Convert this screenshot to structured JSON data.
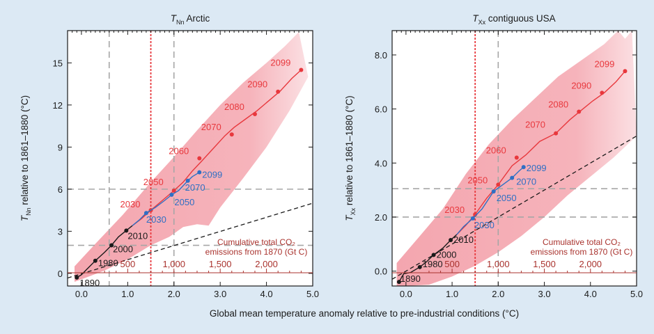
{
  "colors": {
    "background": "#dce9f4",
    "plot_bg": "#ffffff",
    "historical": "#1a1a1a",
    "rcp85": "#e8383d",
    "rcp26": "#2f6fc4",
    "envelope": "#f4a6af",
    "co2_axis": "#a9322d",
    "dashed_grey": "#a6a6a6"
  },
  "shared": {
    "xlabel": "Global mean temperature anomaly relative to pre-industrial conditions (°C)",
    "co2_label": [
      "Cumulative total CO₂",
      "emissions from 1870 (Gt C)"
    ]
  },
  "chart_data": [
    {
      "type": "line",
      "title_main": "T",
      "title_sub": "Nn",
      "title_rest": " Arctic",
      "ylabel_main": "T",
      "ylabel_sub": "Nn",
      "ylabel_rest": " relative to 1861–1880 (°C)",
      "xlim": [
        -0.3,
        5.0
      ],
      "ylim": [
        -0.9,
        17.3
      ],
      "xticks": [
        0,
        1,
        2,
        3,
        4,
        5
      ],
      "xtick_labels": [
        "0.0",
        "1.0",
        "2.0",
        "3.0",
        "4.0",
        "5.0"
      ],
      "yticks": [
        0,
        3,
        6,
        9,
        12,
        15
      ],
      "ytick_labels": [
        "0",
        "3",
        "6",
        "9",
        "12",
        "15"
      ],
      "co2_ticks": [
        {
          "x": 1.0,
          "label": "500"
        },
        {
          "x": 2.0,
          "label": "1,000"
        },
        {
          "x": 3.0,
          "label": "1,500"
        },
        {
          "x": 4.0,
          "label": "2,000"
        }
      ],
      "ref_vlines_grey": [
        0.6,
        2.0
      ],
      "ref_vline_red": 1.5,
      "ref_hlines_grey": [
        2.0,
        6.0
      ],
      "linear_ref": [
        [
          -0.3,
          -0.33
        ],
        [
          5.0,
          5.0
        ]
      ],
      "envelope_upper": [
        [
          -0.15,
          0.5
        ],
        [
          0.3,
          2.1
        ],
        [
          0.9,
          4.2
        ],
        [
          1.5,
          6.5
        ],
        [
          2.0,
          8.3
        ],
        [
          2.5,
          10.2
        ],
        [
          3.0,
          12.0
        ],
        [
          3.5,
          13.6
        ],
        [
          4.0,
          15.0
        ],
        [
          4.4,
          16.2
        ],
        [
          4.7,
          17.2
        ]
      ],
      "envelope_lower": [
        [
          4.9,
          14.0
        ],
        [
          4.5,
          11.6
        ],
        [
          4.0,
          9.0
        ],
        [
          3.5,
          6.8
        ],
        [
          3.0,
          4.7
        ],
        [
          2.75,
          3.4
        ],
        [
          2.5,
          3.5
        ],
        [
          2.2,
          3.3
        ],
        [
          1.9,
          2.6
        ],
        [
          1.5,
          2.0
        ],
        [
          1.0,
          1.0
        ],
        [
          0.5,
          0.2
        ],
        [
          0.1,
          -0.3
        ],
        [
          -0.15,
          -0.6
        ]
      ],
      "series": [
        {
          "key": "historical",
          "points": [
            [
              -0.1,
              -0.3
            ],
            [
              0.0,
              -0.1
            ],
            [
              0.12,
              0.3
            ],
            [
              0.3,
              0.9
            ],
            [
              0.5,
              1.5
            ],
            [
              0.65,
              2.0
            ],
            [
              0.8,
              2.6
            ],
            [
              0.97,
              3.05
            ],
            [
              1.1,
              3.4
            ]
          ],
          "labeled": [
            {
              "x": -0.1,
              "y": -0.3,
              "label": "1890",
              "dx": 4,
              "dy": 12
            },
            {
              "x": 0.3,
              "y": 0.9,
              "label": "1980",
              "dx": 4,
              "dy": 8
            },
            {
              "x": 0.65,
              "y": 2.0,
              "label": "2000",
              "dx": 2,
              "dy": 10
            },
            {
              "x": 0.97,
              "y": 3.05,
              "label": "2010",
              "dx": 2,
              "dy": 12
            }
          ]
        },
        {
          "key": "rcp85",
          "points": [
            [
              1.1,
              3.4
            ],
            [
              1.3,
              3.9
            ],
            [
              1.5,
              4.5
            ],
            [
              1.75,
              5.2
            ],
            [
              2.0,
              5.9
            ],
            [
              2.2,
              6.5
            ],
            [
              2.4,
              7.3
            ],
            [
              2.6,
              8.0
            ],
            [
              2.85,
              8.9
            ],
            [
              3.1,
              9.8
            ],
            [
              3.3,
              10.4
            ],
            [
              3.55,
              11.0
            ],
            [
              3.8,
              11.6
            ],
            [
              4.05,
              12.3
            ],
            [
              4.3,
              13.0
            ],
            [
              4.55,
              13.9
            ],
            [
              4.75,
              14.5
            ]
          ],
          "labeled": [
            {
              "x": 1.5,
              "y": 4.5,
              "label": "2030",
              "dx": -44,
              "dy": -4
            },
            {
              "x": 2.0,
              "y": 5.9,
              "label": "2050",
              "dx": -44,
              "dy": -8
            },
            {
              "x": 2.55,
              "y": 8.2,
              "label": "2060",
              "dx": -44,
              "dy": -6
            },
            {
              "x": 3.25,
              "y": 9.9,
              "label": "2070",
              "dx": -44,
              "dy": -6
            },
            {
              "x": 3.75,
              "y": 11.35,
              "label": "2080",
              "dx": -44,
              "dy": -6
            },
            {
              "x": 4.25,
              "y": 12.95,
              "label": "2090",
              "dx": -44,
              "dy": -6
            },
            {
              "x": 4.75,
              "y": 14.5,
              "label": "2099",
              "dx": -44,
              "dy": -6
            }
          ]
        },
        {
          "key": "rcp26",
          "points": [
            [
              1.1,
              3.4
            ],
            [
              1.25,
              3.8
            ],
            [
              1.4,
              4.3
            ],
            [
              1.6,
              4.7
            ],
            [
              1.8,
              5.2
            ],
            [
              1.95,
              5.6
            ],
            [
              2.1,
              5.9
            ],
            [
              2.3,
              6.6
            ],
            [
              2.4,
              6.9
            ],
            [
              2.55,
              7.2
            ]
          ],
          "labeled": [
            {
              "x": 1.4,
              "y": 4.3,
              "label": "2030",
              "dx": 0,
              "dy": 14
            },
            {
              "x": 1.95,
              "y": 5.6,
              "label": "2050",
              "dx": 4,
              "dy": 15
            },
            {
              "x": 2.3,
              "y": 6.6,
              "label": "2070",
              "dx": -4,
              "dy": 14
            },
            {
              "x": 2.55,
              "y": 7.2,
              "label": "2099",
              "dx": 4,
              "dy": 8
            }
          ]
        }
      ]
    },
    {
      "type": "line",
      "title_main": "T",
      "title_sub": "Xx",
      "title_rest": " contiguous USA",
      "ylabel_main": "T",
      "ylabel_sub": "Xx",
      "ylabel_rest": " relative to 1861–1880 (°C)",
      "xlim": [
        -0.3,
        5.0
      ],
      "ylim": [
        -0.55,
        8.9
      ],
      "xticks": [
        0,
        1,
        2,
        3,
        4,
        5
      ],
      "xtick_labels": [
        "0.0",
        "1.0",
        "2.0",
        "3.0",
        "4.0",
        "5.0"
      ],
      "yticks": [
        0,
        2,
        4,
        6,
        8
      ],
      "ytick_labels": [
        "0.0",
        "2.0",
        "4.0",
        "6.0",
        "8.0"
      ],
      "co2_ticks": [
        {
          "x": 1.0,
          "label": "500"
        },
        {
          "x": 2.0,
          "label": "1,000"
        },
        {
          "x": 3.0,
          "label": "1,500"
        },
        {
          "x": 4.0,
          "label": "2,000"
        }
      ],
      "ref_vlines_grey": [
        2.0
      ],
      "ref_vline_red": 1.5,
      "ref_hlines_grey": [
        2.0,
        3.05
      ],
      "linear_ref": [
        [
          -0.3,
          -0.3
        ],
        [
          5.0,
          5.0
        ]
      ],
      "envelope_upper": [
        [
          -0.2,
          0.3
        ],
        [
          0.3,
          1.3
        ],
        [
          0.8,
          2.3
        ],
        [
          1.3,
          3.6
        ],
        [
          1.8,
          4.7
        ],
        [
          2.3,
          5.6
        ],
        [
          2.8,
          6.4
        ],
        [
          3.3,
          7.2
        ],
        [
          3.8,
          7.8
        ],
        [
          4.3,
          8.4
        ],
        [
          4.6,
          8.9
        ],
        [
          4.75,
          8.6
        ],
        [
          4.9,
          8.9
        ]
      ],
      "envelope_lower": [
        [
          5.0,
          5.0
        ],
        [
          4.5,
          4.2
        ],
        [
          4.0,
          3.5
        ],
        [
          3.5,
          2.8
        ],
        [
          3.0,
          2.0
        ],
        [
          2.5,
          1.3
        ],
        [
          2.0,
          0.7
        ],
        [
          1.5,
          0.2
        ],
        [
          1.0,
          -0.2
        ],
        [
          0.5,
          -0.5
        ],
        [
          0.0,
          -0.55
        ],
        [
          -0.2,
          -0.55
        ]
      ],
      "series": [
        {
          "key": "historical",
          "points": [
            [
              -0.15,
              -0.4
            ],
            [
              -0.05,
              -0.1
            ],
            [
              0.1,
              -0.05
            ],
            [
              0.3,
              0.15
            ],
            [
              0.45,
              0.35
            ],
            [
              0.6,
              0.6
            ],
            [
              0.8,
              0.85
            ],
            [
              0.97,
              1.15
            ],
            [
              1.1,
              1.35
            ]
          ],
          "labeled": [
            {
              "x": -0.15,
              "y": -0.4,
              "label": "1890",
              "dx": 2,
              "dy": 0
            },
            {
              "x": 0.3,
              "y": 0.15,
              "label": "1980",
              "dx": 4,
              "dy": 0
            },
            {
              "x": 0.6,
              "y": 0.6,
              "label": "2000",
              "dx": 4,
              "dy": 4
            },
            {
              "x": 0.97,
              "y": 1.15,
              "label": "2010",
              "dx": 4,
              "dy": 4
            }
          ]
        },
        {
          "key": "rcp85",
          "points": [
            [
              1.1,
              1.35
            ],
            [
              1.3,
              1.7
            ],
            [
              1.5,
              2.1
            ],
            [
              1.75,
              2.7
            ],
            [
              2.0,
              3.2
            ],
            [
              2.3,
              3.9
            ],
            [
              2.6,
              4.3
            ],
            [
              2.9,
              4.8
            ],
            [
              3.25,
              5.1
            ],
            [
              3.55,
              5.6
            ],
            [
              3.8,
              5.95
            ],
            [
              4.05,
              6.3
            ],
            [
              4.3,
              6.6
            ],
            [
              4.55,
              7.0
            ],
            [
              4.75,
              7.4
            ]
          ],
          "labeled": [
            {
              "x": 1.5,
              "y": 2.1,
              "label": "2030",
              "dx": -44,
              "dy": -2
            },
            {
              "x": 2.0,
              "y": 3.2,
              "label": "2050",
              "dx": -44,
              "dy": -2
            },
            {
              "x": 2.4,
              "y": 4.2,
              "label": "2060",
              "dx": -44,
              "dy": -6
            },
            {
              "x": 3.25,
              "y": 5.1,
              "label": "2070",
              "dx": -44,
              "dy": -8
            },
            {
              "x": 3.75,
              "y": 5.9,
              "label": "2080",
              "dx": -44,
              "dy": -6
            },
            {
              "x": 4.25,
              "y": 6.6,
              "label": "2090",
              "dx": -44,
              "dy": -6
            },
            {
              "x": 4.75,
              "y": 7.4,
              "label": "2099",
              "dx": -44,
              "dy": -6
            }
          ]
        },
        {
          "key": "rcp26",
          "points": [
            [
              1.1,
              1.35
            ],
            [
              1.25,
              1.65
            ],
            [
              1.45,
              1.95
            ],
            [
              1.65,
              2.3
            ],
            [
              1.9,
              2.95
            ],
            [
              2.1,
              3.2
            ],
            [
              2.3,
              3.45
            ],
            [
              2.45,
              3.7
            ],
            [
              2.55,
              3.85
            ]
          ],
          "labeled": [
            {
              "x": 1.45,
              "y": 1.95,
              "label": "2030",
              "dx": 2,
              "dy": 14
            },
            {
              "x": 1.9,
              "y": 2.95,
              "label": "2050",
              "dx": 4,
              "dy": 14
            },
            {
              "x": 2.3,
              "y": 3.45,
              "label": "2070",
              "dx": 6,
              "dy": 10
            },
            {
              "x": 2.55,
              "y": 3.85,
              "label": "2099",
              "dx": 4,
              "dy": 6
            }
          ]
        }
      ]
    }
  ]
}
